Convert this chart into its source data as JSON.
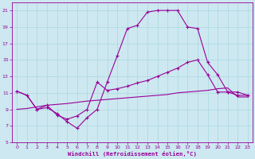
{
  "xlabel": "Windchill (Refroidissement éolien,°C)",
  "background_color": "#cde8f0",
  "line_color": "#990099",
  "grid_color": "#aad8e0",
  "xlim": [
    -0.5,
    23.5
  ],
  "ylim": [
    5,
    22
  ],
  "xticks": [
    0,
    1,
    2,
    3,
    4,
    5,
    6,
    7,
    8,
    9,
    10,
    11,
    12,
    13,
    14,
    15,
    16,
    17,
    18,
    19,
    20,
    21,
    22,
    23
  ],
  "yticks": [
    5,
    7,
    9,
    11,
    13,
    15,
    17,
    19,
    21
  ],
  "line1_x": [
    0,
    1,
    2,
    3,
    4,
    5,
    6,
    7,
    8,
    9,
    10,
    11,
    12,
    13,
    14,
    15,
    16,
    17,
    18,
    19,
    20,
    21,
    22,
    23
  ],
  "line1_y": [
    11.2,
    10.7,
    9.0,
    9.2,
    8.5,
    7.5,
    6.7,
    8.0,
    9.0,
    12.3,
    15.5,
    18.8,
    19.2,
    20.8,
    21.0,
    21.0,
    21.0,
    19.0,
    18.8,
    14.7,
    13.2,
    11.1,
    11.1,
    10.7
  ],
  "line2_x": [
    0,
    1,
    2,
    3,
    4,
    5,
    6,
    7,
    8,
    9,
    10,
    11,
    12,
    13,
    14,
    15,
    16,
    17,
    18,
    19,
    20,
    21,
    22,
    23
  ],
  "line2_y": [
    11.2,
    10.7,
    9.0,
    9.5,
    8.3,
    7.8,
    8.2,
    9.0,
    12.3,
    11.3,
    11.5,
    11.8,
    12.2,
    12.5,
    13.0,
    13.5,
    14.0,
    14.7,
    15.0,
    13.2,
    11.1,
    11.1,
    10.7,
    10.7
  ],
  "line3_x": [
    0,
    1,
    2,
    3,
    4,
    5,
    6,
    7,
    8,
    9,
    10,
    11,
    12,
    13,
    14,
    15,
    16,
    17,
    18,
    19,
    20,
    21,
    22,
    23
  ],
  "line3_y": [
    9.0,
    9.1,
    9.3,
    9.5,
    9.6,
    9.7,
    9.85,
    10.0,
    10.1,
    10.2,
    10.3,
    10.4,
    10.5,
    10.6,
    10.7,
    10.8,
    11.0,
    11.1,
    11.2,
    11.3,
    11.5,
    11.6,
    10.5,
    10.5
  ],
  "marker": "+",
  "markersize": 3,
  "linewidth": 0.8
}
